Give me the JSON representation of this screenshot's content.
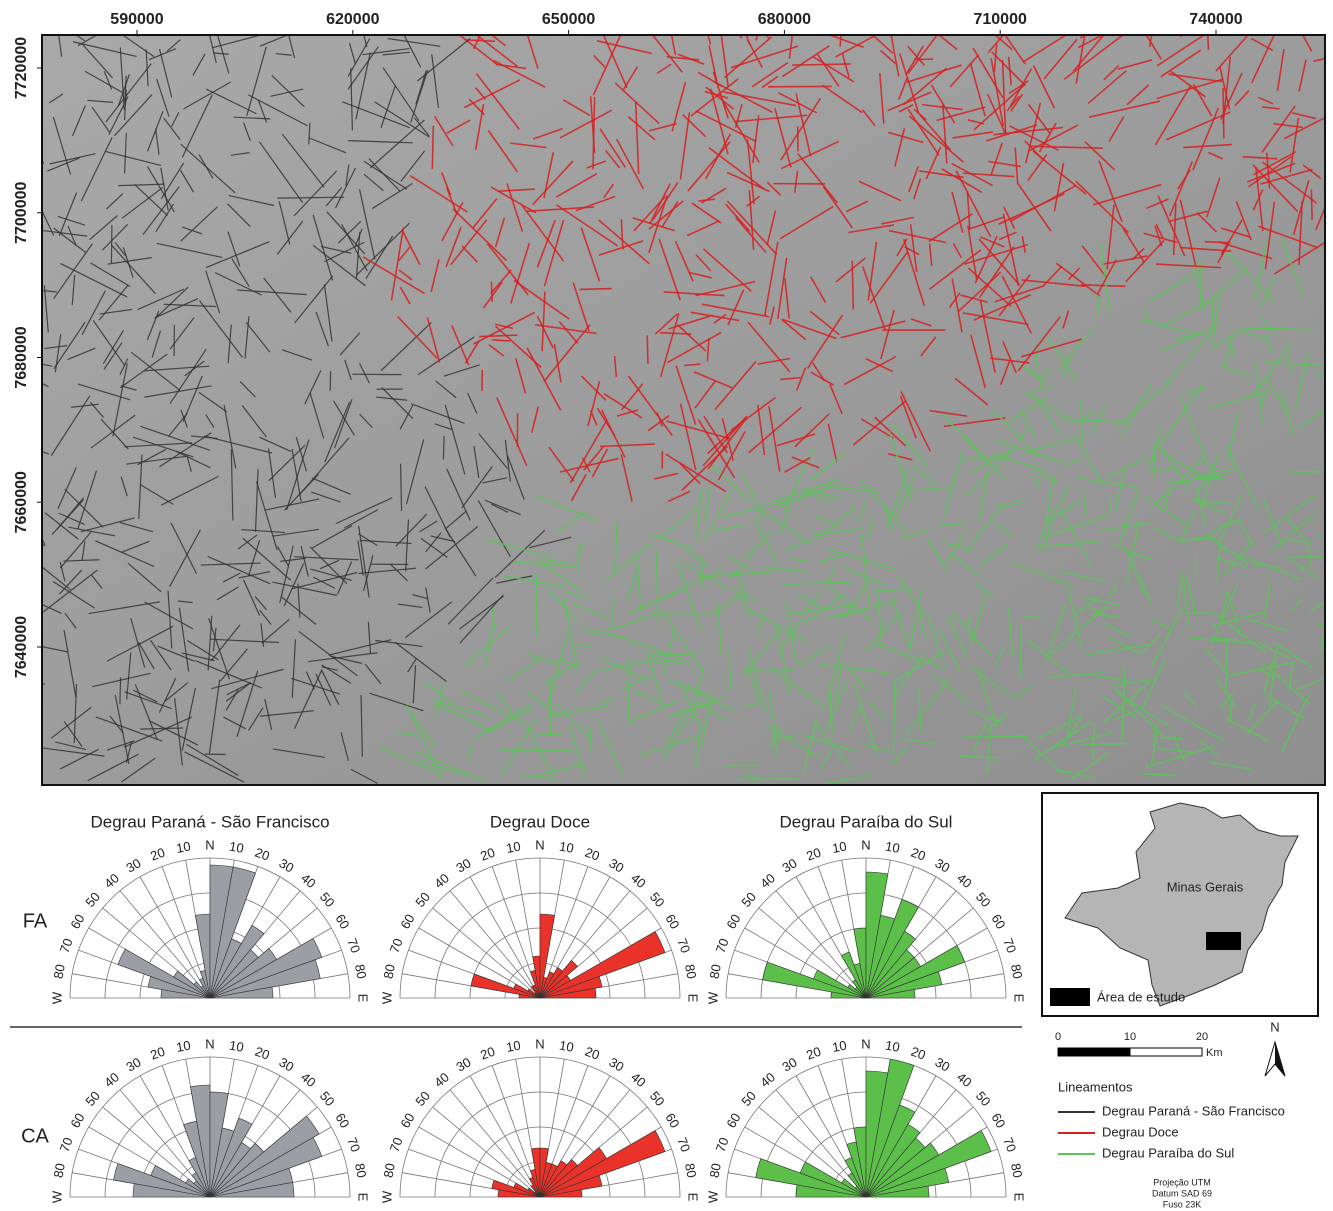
{
  "map": {
    "xlim": [
      576793,
      755154
    ],
    "ylim": [
      7620932,
      7724560
    ],
    "xticks": [
      590000,
      620000,
      650000,
      680000,
      710000,
      740000
    ],
    "yticks": [
      7640000,
      7660000,
      7680000,
      7700000,
      7720000
    ]
  },
  "roses": {
    "direction_ticks": [
      10,
      20,
      30,
      40,
      50,
      60,
      70,
      80
    ],
    "north": "N",
    "east": "E",
    "west": "W",
    "rows": [
      "FA",
      "CA"
    ],
    "columns": [
      {
        "title": "Degrau Paraná - São Francisco",
        "color": "#9c9ea6",
        "values": [
          [
            0.35,
            0.45,
            0.7,
            0.3,
            0.15,
            0.1,
            0.15,
            0.2,
            0.6,
            0.95,
            0.95,
            0.45,
            0.6,
            0.45,
            0.55,
            0.85,
            0.8,
            0.45
          ],
          [
            0.55,
            0.7,
            0.45,
            0.2,
            0.15,
            0.2,
            0.3,
            0.55,
            0.8,
            0.75,
            0.5,
            0.6,
            0.45,
            0.5,
            0.9,
            0.85,
            0.6,
            0.6
          ]
        ]
      },
      {
        "title": "Degrau Doce",
        "color": "#e8322a",
        "values": [
          [
            0.15,
            0.5,
            0.2,
            0.1,
            0.05,
            0.1,
            0.1,
            0.2,
            0.3,
            0.6,
            0.15,
            0.2,
            0.25,
            0.35,
            0.25,
            0.95,
            0.45,
            0.4
          ],
          [
            0.3,
            0.35,
            0.2,
            0.1,
            0.05,
            0.1,
            0.15,
            0.2,
            0.35,
            0.35,
            0.25,
            0.25,
            0.3,
            0.35,
            0.55,
            0.95,
            0.45,
            0.3
          ]
        ]
      },
      {
        "title": "Degrau Paraíba do Sul",
        "color": "#5cbf4a",
        "values": [
          [
            0.25,
            0.75,
            0.4,
            0.15,
            0.1,
            0.15,
            0.35,
            0.25,
            0.5,
            0.9,
            0.6,
            0.75,
            0.55,
            0.45,
            0.45,
            0.75,
            0.55,
            0.35
          ],
          [
            0.5,
            0.8,
            0.5,
            0.2,
            0.1,
            0.2,
            0.3,
            0.4,
            0.5,
            0.9,
            1.0,
            0.7,
            0.6,
            0.55,
            0.6,
            0.95,
            0.6,
            0.45
          ]
        ]
      }
    ]
  },
  "inset": {
    "state": "Minas Gerais",
    "study_area": "Área de estudo",
    "scale_ticks": [
      0,
      10,
      20
    ],
    "scale_unit": "Km",
    "north": "N"
  },
  "legend": {
    "title": "Lineamentos",
    "items": [
      {
        "name": "Degrau Paraná - São Francisco",
        "color": "#333333"
      },
      {
        "name": "Degrau Doce",
        "color": "#d62020"
      },
      {
        "name": "Degrau Paraíba do Sul",
        "color": "#5cc45a"
      }
    ]
  },
  "projection": [
    "Projeção UTM",
    "Datum SAD 69",
    "Fuso 23K"
  ]
}
